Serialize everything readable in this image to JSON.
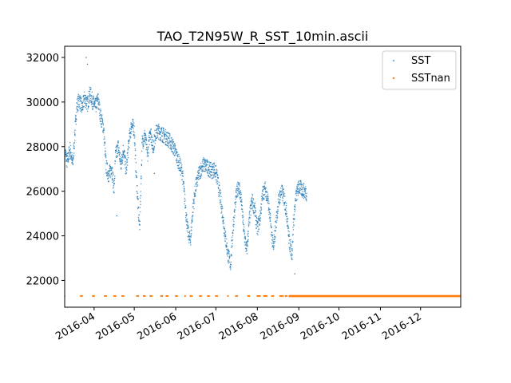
{
  "chart_data": {
    "type": "scatter",
    "title": "TAO_T2N95W_R_SST_10min.ascii",
    "xlabel": "",
    "ylabel": "",
    "x_range": [
      "2016-03-10",
      "2016-12-31"
    ],
    "ylim": [
      20800,
      32500
    ],
    "y_ticks": [
      22000,
      24000,
      26000,
      28000,
      30000,
      32000
    ],
    "x_ticks": [
      {
        "date": "2016-04-01",
        "label": "2016-04"
      },
      {
        "date": "2016-05-01",
        "label": "2016-05"
      },
      {
        "date": "2016-06-01",
        "label": "2016-06"
      },
      {
        "date": "2016-07-01",
        "label": "2016-07"
      },
      {
        "date": "2016-08-01",
        "label": "2016-08"
      },
      {
        "date": "2016-09-01",
        "label": "2016-09"
      },
      {
        "date": "2016-10-01",
        "label": "2016-10"
      },
      {
        "date": "2016-11-01",
        "label": "2016-11"
      },
      {
        "date": "2016-12-01",
        "label": "2016-12"
      }
    ],
    "legend_position": "top-right",
    "grid": false,
    "series": [
      {
        "name": "SST",
        "color": "#1f77b4",
        "marker": "dot",
        "points": [
          [
            "2016-03-10",
            27800
          ],
          [
            "2016-03-12",
            27300
          ],
          [
            "2016-03-14",
            27900
          ],
          [
            "2016-03-16",
            27200
          ],
          [
            "2016-03-17",
            28000
          ],
          [
            "2016-03-19",
            29800
          ],
          [
            "2016-03-21",
            30100
          ],
          [
            "2016-03-23",
            29700
          ],
          [
            "2016-03-25",
            30200
          ],
          [
            "2016-03-27",
            29900
          ],
          [
            "2016-03-29",
            30400
          ],
          [
            "2016-03-31",
            30000
          ],
          [
            "2016-04-02",
            29800
          ],
          [
            "2016-04-04",
            30100
          ],
          [
            "2016-04-06",
            29300
          ],
          [
            "2016-04-08",
            28900
          ],
          [
            "2016-04-10",
            27100
          ],
          [
            "2016-04-12",
            26700
          ],
          [
            "2016-04-14",
            27100
          ],
          [
            "2016-04-16",
            26100
          ],
          [
            "2016-04-17",
            27600
          ],
          [
            "2016-04-19",
            28000
          ],
          [
            "2016-04-21",
            27200
          ],
          [
            "2016-04-23",
            27900
          ],
          [
            "2016-04-25",
            26900
          ],
          [
            "2016-04-27",
            28200
          ],
          [
            "2016-04-29",
            29000
          ],
          [
            "2016-05-01",
            28800
          ],
          [
            "2016-05-02",
            27300
          ],
          [
            "2016-05-04",
            25200
          ],
          [
            "2016-05-05",
            24400
          ],
          [
            "2016-05-07",
            28200
          ],
          [
            "2016-05-09",
            28500
          ],
          [
            "2016-05-11",
            27600
          ],
          [
            "2016-05-13",
            28800
          ],
          [
            "2016-05-15",
            27900
          ],
          [
            "2016-05-17",
            28600
          ],
          [
            "2016-05-19",
            28700
          ],
          [
            "2016-05-21",
            28600
          ],
          [
            "2016-05-23",
            28500
          ],
          [
            "2016-05-25",
            28400
          ],
          [
            "2016-05-27",
            28300
          ],
          [
            "2016-05-29",
            28100
          ],
          [
            "2016-05-31",
            27900
          ],
          [
            "2016-06-02",
            27500
          ],
          [
            "2016-06-04",
            27200
          ],
          [
            "2016-06-06",
            26800
          ],
          [
            "2016-06-08",
            25500
          ],
          [
            "2016-06-10",
            24200
          ],
          [
            "2016-06-12",
            23800
          ],
          [
            "2016-06-14",
            25300
          ],
          [
            "2016-06-16",
            26200
          ],
          [
            "2016-06-18",
            26700
          ],
          [
            "2016-06-20",
            27000
          ],
          [
            "2016-06-22",
            27200
          ],
          [
            "2016-06-24",
            27100
          ],
          [
            "2016-06-26",
            27000
          ],
          [
            "2016-06-28",
            26900
          ],
          [
            "2016-06-30",
            27000
          ],
          [
            "2016-07-02",
            26600
          ],
          [
            "2016-07-04",
            25800
          ],
          [
            "2016-07-06",
            25000
          ],
          [
            "2016-07-08",
            24000
          ],
          [
            "2016-07-10",
            23200
          ],
          [
            "2016-07-12",
            22700
          ],
          [
            "2016-07-14",
            24500
          ],
          [
            "2016-07-16",
            25700
          ],
          [
            "2016-07-18",
            26300
          ],
          [
            "2016-07-20",
            25600
          ],
          [
            "2016-07-22",
            24200
          ],
          [
            "2016-07-24",
            23300
          ],
          [
            "2016-07-26",
            24700
          ],
          [
            "2016-07-28",
            25600
          ],
          [
            "2016-07-30",
            25200
          ],
          [
            "2016-08-01",
            24300
          ],
          [
            "2016-08-03",
            24800
          ],
          [
            "2016-08-05",
            25900
          ],
          [
            "2016-08-07",
            26100
          ],
          [
            "2016-08-09",
            25600
          ],
          [
            "2016-08-11",
            24500
          ],
          [
            "2016-08-13",
            23400
          ],
          [
            "2016-08-15",
            24600
          ],
          [
            "2016-08-17",
            25600
          ],
          [
            "2016-08-19",
            26000
          ],
          [
            "2016-08-21",
            25700
          ],
          [
            "2016-08-23",
            25000
          ],
          [
            "2016-08-25",
            23700
          ],
          [
            "2016-08-27",
            23200
          ],
          [
            "2016-08-28",
            24600
          ],
          [
            "2016-08-30",
            25800
          ],
          [
            "2016-09-01",
            26200
          ],
          [
            "2016-09-03",
            26100
          ],
          [
            "2016-09-05",
            26000
          ],
          [
            "2016-09-07",
            25900
          ]
        ]
      },
      {
        "name": "SSTnan",
        "color": "#ff7f0e",
        "marker": "dot",
        "constant_value": 21300,
        "sparse_dates": [
          "2016-03-10",
          "2016-03-22",
          "2016-03-23",
          "2016-03-31",
          "2016-04-01",
          "2016-04-09",
          "2016-04-10",
          "2016-04-16",
          "2016-04-17",
          "2016-04-22",
          "2016-04-23",
          "2016-05-03",
          "2016-05-04",
          "2016-05-08",
          "2016-05-09",
          "2016-05-13",
          "2016-05-14",
          "2016-05-21",
          "2016-05-22",
          "2016-05-25",
          "2016-05-26",
          "2016-06-01",
          "2016-06-02",
          "2016-06-08",
          "2016-06-12",
          "2016-06-13",
          "2016-06-19",
          "2016-06-20",
          "2016-06-25",
          "2016-06-26",
          "2016-07-01",
          "2016-07-02",
          "2016-07-10",
          "2016-07-16",
          "2016-07-17",
          "2016-07-25",
          "2016-07-26",
          "2016-08-01",
          "2016-08-02",
          "2016-08-03",
          "2016-08-06",
          "2016-08-07",
          "2016-08-08",
          "2016-08-12",
          "2016-08-13",
          "2016-08-18",
          "2016-08-19",
          "2016-08-20",
          "2016-08-22",
          "2016-08-23"
        ],
        "dense_range": [
          "2016-08-25",
          "2016-12-31"
        ]
      }
    ]
  }
}
